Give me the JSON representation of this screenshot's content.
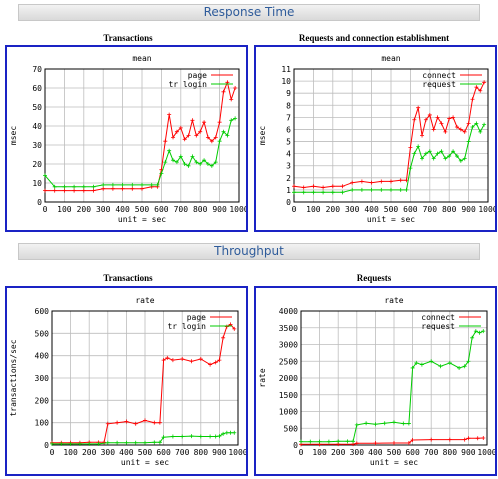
{
  "sections": {
    "response_time": {
      "title": "Response Time"
    },
    "throughput": {
      "title": "Throughput"
    }
  },
  "panels": {
    "rt_transactions": {
      "group_title": "Transactions"
    },
    "rt_requests": {
      "group_title": "Requests and connection establishment"
    },
    "tp_transactions": {
      "group_title": "Transactions"
    },
    "tp_requests": {
      "group_title": "Requests"
    }
  },
  "chart_data": [
    {
      "type": "line",
      "title": "mean",
      "xlabel": "unit = sec",
      "ylabel": "msec",
      "xlim": [
        0,
        1000
      ],
      "ylim": [
        0,
        70
      ],
      "x_ticks": [
        0,
        100,
        200,
        300,
        400,
        500,
        600,
        700,
        800,
        900,
        1000
      ],
      "y_ticks": [
        0,
        10,
        20,
        30,
        40,
        50,
        60,
        70
      ],
      "grid": true,
      "legend": "top-right",
      "series": [
        {
          "name": "page",
          "color": "#ff0000",
          "x": [
            0,
            50,
            100,
            150,
            200,
            250,
            300,
            350,
            400,
            450,
            500,
            550,
            580,
            600,
            620,
            640,
            660,
            680,
            700,
            720,
            740,
            760,
            780,
            800,
            820,
            840,
            860,
            880,
            900,
            920,
            940,
            960,
            980
          ],
          "y": [
            6,
            6,
            6,
            6,
            6,
            6,
            7,
            7,
            7,
            7,
            7,
            8,
            8,
            17,
            32,
            46,
            34,
            37,
            39,
            33,
            35,
            43,
            35,
            37,
            42,
            34,
            32,
            34,
            42,
            58,
            63,
            54,
            60
          ]
        },
        {
          "name": "tr login",
          "color": "#00cc00",
          "x": [
            0,
            50,
            100,
            150,
            200,
            250,
            300,
            350,
            400,
            450,
            500,
            550,
            580,
            600,
            620,
            640,
            660,
            680,
            700,
            720,
            740,
            760,
            780,
            800,
            820,
            840,
            860,
            880,
            900,
            920,
            940,
            960,
            980
          ],
          "y": [
            14,
            8,
            8,
            8,
            8,
            8,
            9,
            9,
            9,
            9,
            9,
            9,
            9,
            15,
            21,
            27,
            22,
            21,
            24,
            20,
            19,
            24,
            21,
            20,
            22,
            20,
            19,
            21,
            32,
            37,
            35,
            43,
            44
          ]
        }
      ]
    },
    {
      "type": "line",
      "title": "mean",
      "xlabel": "unit = sec",
      "ylabel": "msec",
      "xlim": [
        0,
        1000
      ],
      "ylim": [
        0,
        11
      ],
      "x_ticks": [
        0,
        100,
        200,
        300,
        400,
        500,
        600,
        700,
        800,
        900,
        1000
      ],
      "y_ticks": [
        0,
        1,
        2,
        3,
        4,
        5,
        6,
        7,
        8,
        9,
        10,
        11
      ],
      "grid": true,
      "legend": "top-right",
      "series": [
        {
          "name": "connect",
          "color": "#ff0000",
          "x": [
            0,
            50,
            100,
            150,
            200,
            250,
            300,
            350,
            400,
            450,
            500,
            550,
            580,
            600,
            620,
            640,
            660,
            680,
            700,
            720,
            740,
            760,
            780,
            800,
            820,
            840,
            860,
            880,
            900,
            920,
            940,
            960,
            980
          ],
          "y": [
            1.3,
            1.2,
            1.3,
            1.2,
            1.3,
            1.3,
            1.6,
            1.7,
            1.6,
            1.7,
            1.7,
            1.8,
            1.8,
            4.5,
            6.8,
            7.8,
            5.5,
            6.8,
            7.2,
            6.0,
            7.0,
            6.5,
            5.8,
            6.9,
            7.0,
            6.2,
            6.0,
            5.8,
            6.5,
            8.5,
            9.5,
            9.2,
            9.9
          ]
        },
        {
          "name": "request",
          "color": "#00cc00",
          "x": [
            0,
            50,
            100,
            150,
            200,
            250,
            300,
            350,
            400,
            450,
            500,
            550,
            580,
            600,
            620,
            640,
            660,
            680,
            700,
            720,
            740,
            760,
            780,
            800,
            820,
            840,
            860,
            880,
            900,
            920,
            940,
            960,
            980
          ],
          "y": [
            0.8,
            0.8,
            0.8,
            0.8,
            0.8,
            0.8,
            1.0,
            1.0,
            1.0,
            1.0,
            1.0,
            1.0,
            1.0,
            2.8,
            4.0,
            4.6,
            3.6,
            4.0,
            4.2,
            3.6,
            4.0,
            4.2,
            3.6,
            3.8,
            4.2,
            3.8,
            3.4,
            3.6,
            5.0,
            6.2,
            6.5,
            5.8,
            6.4
          ]
        }
      ]
    },
    {
      "type": "line",
      "title": "rate",
      "xlabel": "unit = sec",
      "ylabel": "transactions/sec",
      "xlim": [
        0,
        1000
      ],
      "ylim": [
        0,
        600
      ],
      "x_ticks": [
        0,
        100,
        200,
        300,
        400,
        500,
        600,
        700,
        800,
        900,
        1000
      ],
      "y_ticks": [
        0,
        100,
        200,
        300,
        400,
        500,
        600
      ],
      "grid": true,
      "legend": "top-right",
      "series": [
        {
          "name": "page",
          "color": "#ff0000",
          "x": [
            0,
            50,
            100,
            150,
            200,
            250,
            280,
            300,
            350,
            400,
            450,
            500,
            550,
            580,
            600,
            620,
            650,
            700,
            750,
            800,
            850,
            880,
            900,
            920,
            940,
            960,
            980
          ],
          "y": [
            10,
            10,
            10,
            10,
            12,
            12,
            12,
            95,
            100,
            105,
            95,
            110,
            100,
            100,
            380,
            390,
            380,
            385,
            375,
            385,
            360,
            370,
            380,
            480,
            530,
            540,
            520
          ]
        },
        {
          "name": "tr login",
          "color": "#00cc00",
          "x": [
            0,
            50,
            100,
            150,
            200,
            250,
            300,
            350,
            400,
            450,
            500,
            550,
            580,
            600,
            650,
            700,
            750,
            800,
            850,
            880,
            900,
            920,
            940,
            960,
            980
          ],
          "y": [
            5,
            5,
            5,
            5,
            5,
            5,
            10,
            10,
            10,
            10,
            10,
            12,
            12,
            35,
            38,
            38,
            40,
            38,
            38,
            38,
            40,
            50,
            55,
            55,
            55
          ]
        }
      ]
    },
    {
      "type": "line",
      "title": "rate",
      "xlabel": "unit = sec",
      "ylabel": "rate",
      "xlim": [
        0,
        1000
      ],
      "ylim": [
        0,
        4000
      ],
      "x_ticks": [
        0,
        100,
        200,
        300,
        400,
        500,
        600,
        700,
        800,
        900,
        1000
      ],
      "y_ticks": [
        0,
        500,
        1000,
        1500,
        2000,
        2500,
        3000,
        3500,
        4000
      ],
      "grid": true,
      "legend": "top-right",
      "series": [
        {
          "name": "connect",
          "color": "#ff0000",
          "x": [
            0,
            100,
            200,
            280,
            300,
            400,
            500,
            580,
            600,
            700,
            800,
            880,
            900,
            950,
            980
          ],
          "y": [
            20,
            20,
            25,
            25,
            50,
            55,
            60,
            60,
            150,
            160,
            160,
            160,
            200,
            200,
            210
          ]
        },
        {
          "name": "request",
          "color": "#00cc00",
          "x": [
            0,
            50,
            100,
            150,
            200,
            250,
            280,
            300,
            350,
            400,
            450,
            500,
            550,
            580,
            600,
            620,
            650,
            700,
            750,
            800,
            850,
            880,
            900,
            920,
            940,
            960,
            980
          ],
          "y": [
            100,
            100,
            100,
            100,
            110,
            110,
            110,
            600,
            650,
            620,
            650,
            680,
            640,
            640,
            2300,
            2450,
            2400,
            2500,
            2350,
            2450,
            2300,
            2350,
            2500,
            3200,
            3400,
            3350,
            3400
          ]
        }
      ]
    }
  ]
}
